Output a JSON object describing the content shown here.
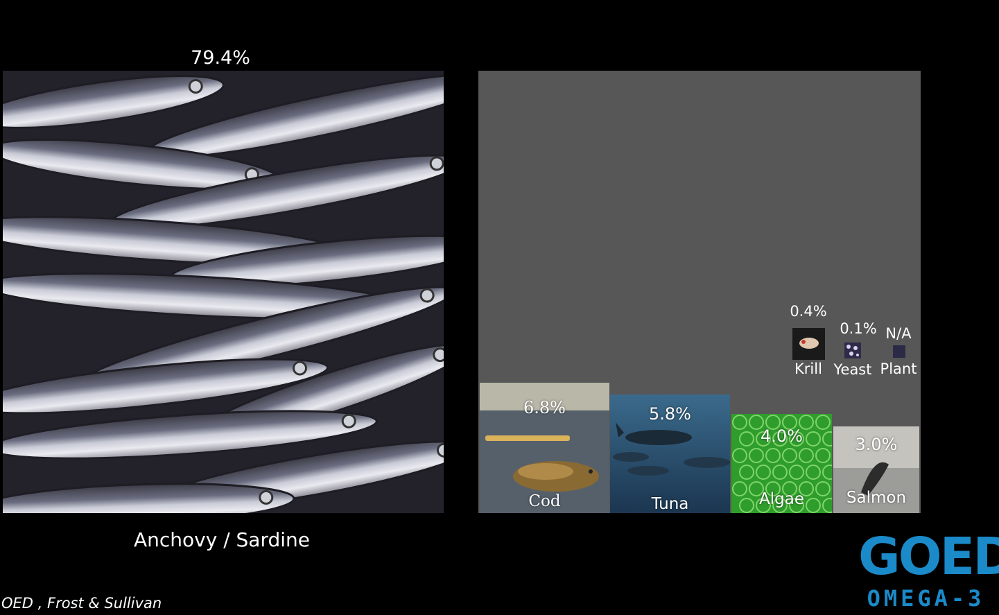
{
  "main": {
    "percent": "79.4%",
    "label": "Anchovy / Sardine"
  },
  "source": "OED , Frost & Sullivan",
  "logo": {
    "word": "GOED",
    "sub": "OMEGA-3",
    "color": "#1b8ac9"
  },
  "chart_data": {
    "type": "treemap",
    "items": [
      {
        "name": "Anchovy / Sardine",
        "value": 79.4,
        "value_label": "79.4%"
      },
      {
        "name": "Cod",
        "value": 6.8,
        "value_label": "6.8%"
      },
      {
        "name": "Tuna",
        "value": 5.8,
        "value_label": "5.8%"
      },
      {
        "name": "Algae",
        "value": 4.0,
        "value_label": "4.0%"
      },
      {
        "name": "Salmon",
        "value": 3.0,
        "value_label": "3.0%"
      },
      {
        "name": "Krill",
        "value": 0.4,
        "value_label": "0.4%"
      },
      {
        "name": "Yeast",
        "value": 0.1,
        "value_label": "0.1%"
      },
      {
        "name": "Plant",
        "value": null,
        "value_label": "N/A"
      }
    ]
  }
}
